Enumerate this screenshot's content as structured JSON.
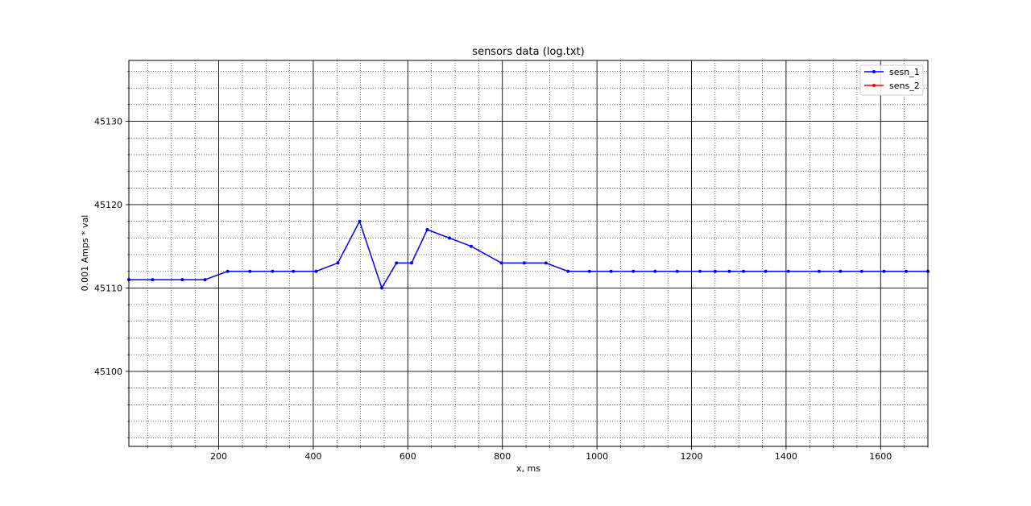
{
  "chart_data": {
    "type": "line",
    "title": "sensors data (log.txt)",
    "xlabel": "x, ms",
    "ylabel": "0.001 Amps * val",
    "xlim": [
      10,
      1700
    ],
    "ylim": [
      45091,
      45137.3
    ],
    "x_ticks": [
      200,
      400,
      600,
      800,
      1000,
      1200,
      1400,
      1600
    ],
    "y_ticks": [
      45100,
      45110,
      45120,
      45130
    ],
    "x_minor_step": 50,
    "y_minor_step": 2,
    "grid": true,
    "legend_position": "top-right",
    "series": [
      {
        "name": "sesn_1",
        "color": "#0000ff",
        "x": [
          10,
          60,
          123,
          171,
          219,
          266,
          314,
          358,
          406,
          452,
          498,
          545,
          576,
          608,
          641,
          688,
          734,
          798,
          846,
          892,
          939,
          984,
          1030,
          1077,
          1123,
          1170,
          1218,
          1250,
          1280,
          1310,
          1357,
          1405,
          1470,
          1515,
          1560,
          1607,
          1654,
          1700
        ],
        "y": [
          45111,
          45111,
          45111,
          45111,
          45112,
          45112,
          45112,
          45112,
          45112,
          45113,
          45118,
          45110,
          45113,
          45113,
          45117,
          45116,
          45115,
          45113,
          45113,
          45113,
          45112,
          45112,
          45112,
          45112,
          45112,
          45112,
          45112,
          45112,
          45112,
          45112,
          45112,
          45112,
          45112,
          45112,
          45112,
          45112,
          45112,
          45112
        ]
      },
      {
        "name": "sens_2",
        "color": "#ff0000",
        "x": [],
        "y": []
      }
    ]
  }
}
